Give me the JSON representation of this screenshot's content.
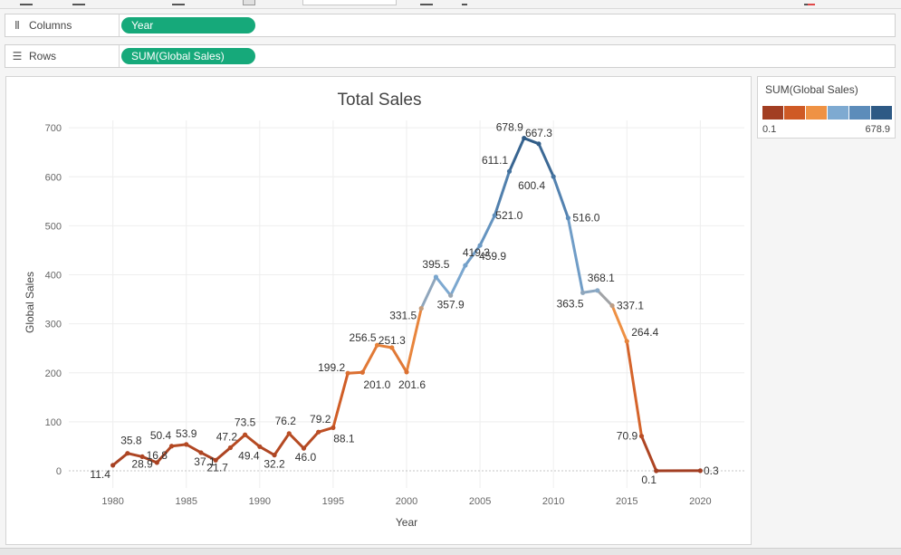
{
  "shelves": {
    "columns": {
      "label": "Columns",
      "icon": "columns-icon",
      "pill": "Year"
    },
    "rows": {
      "label": "Rows",
      "icon": "rows-icon",
      "pill": "SUM(Global Sales)"
    }
  },
  "legend": {
    "title": "SUM(Global Sales)",
    "min_label": "0.1",
    "max_label": "678.9",
    "colors": [
      "#a23e22",
      "#cf5a25",
      "#ef9244",
      "#7eaad1",
      "#5c8cba",
      "#2e5a85"
    ]
  },
  "colors": {
    "pill": "#16a97a"
  },
  "chart_data": {
    "type": "line",
    "title": "Total Sales",
    "xlabel": "Year",
    "ylabel": "Global Sales",
    "xlim": [
      1977,
      2023
    ],
    "ylim": [
      -35,
      715
    ],
    "xticks": [
      1980,
      1985,
      1990,
      1995,
      2000,
      2005,
      2010,
      2015,
      2020
    ],
    "yticks": [
      0,
      100,
      200,
      300,
      400,
      500,
      600,
      700
    ],
    "grid": true,
    "legend": "right",
    "color_scale": {
      "min": 0.1,
      "max": 678.9
    },
    "x": [
      1980,
      1981,
      1982,
      1983,
      1984,
      1985,
      1986,
      1987,
      1988,
      1989,
      1990,
      1991,
      1992,
      1993,
      1994,
      1995,
      1996,
      1997,
      1998,
      1999,
      2000,
      2001,
      2002,
      2003,
      2004,
      2005,
      2006,
      2007,
      2008,
      2009,
      2010,
      2011,
      2012,
      2013,
      2014,
      2015,
      2016,
      2017,
      2020
    ],
    "y": [
      11.4,
      35.8,
      28.9,
      16.8,
      50.4,
      53.9,
      37.1,
      21.7,
      47.2,
      73.5,
      49.4,
      32.2,
      76.2,
      46.0,
      79.2,
      88.1,
      199.2,
      201.0,
      256.5,
      251.3,
      201.6,
      331.5,
      395.5,
      357.9,
      419.3,
      459.9,
      521.0,
      611.1,
      678.9,
      667.3,
      600.4,
      516.0,
      363.5,
      368.1,
      337.1,
      264.4,
      70.9,
      0.1,
      0.3
    ],
    "labels": [
      "11.4",
      "35.8",
      "28.9",
      "16.8",
      "50.4",
      "53.9",
      "37.1",
      "21.7",
      "47.2",
      "73.5",
      "49.4",
      "32.2",
      "76.2",
      "46.0",
      "79.2",
      "88.1",
      "199.2",
      "201.0",
      "256.5",
      "251.3",
      "201.6",
      "331.5",
      "395.5",
      "357.9",
      "419.3",
      "459.9",
      "521.0",
      "611.1",
      "678.9",
      "667.3",
      "600.4",
      "516.0",
      "363.5",
      "368.1",
      "337.1",
      "264.4",
      "70.9",
      "0.1",
      "0.3"
    ]
  }
}
